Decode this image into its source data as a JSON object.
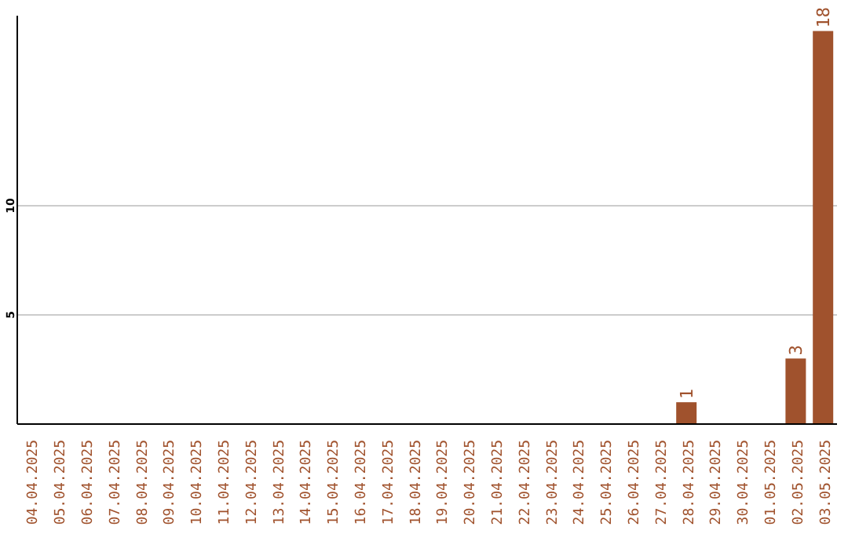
{
  "chart_data": {
    "type": "bar",
    "categories": [
      "04.04.2025",
      "05.04.2025",
      "06.04.2025",
      "07.04.2025",
      "08.04.2025",
      "09.04.2025",
      "10.04.2025",
      "11.04.2025",
      "12.04.2025",
      "13.04.2025",
      "14.04.2025",
      "15.04.2025",
      "16.04.2025",
      "17.04.2025",
      "18.04.2025",
      "19.04.2025",
      "20.04.2025",
      "21.04.2025",
      "22.04.2025",
      "23.04.2025",
      "24.04.2025",
      "25.04.2025",
      "26.04.2025",
      "27.04.2025",
      "28.04.2025",
      "29.04.2025",
      "30.04.2025",
      "01.05.2025",
      "02.05.2025",
      "03.05.2025"
    ],
    "values": [
      0,
      0,
      0,
      0,
      0,
      0,
      0,
      0,
      0,
      0,
      0,
      0,
      0,
      0,
      0,
      0,
      0,
      0,
      0,
      0,
      0,
      0,
      0,
      0,
      1,
      0,
      0,
      0,
      3,
      18
    ],
    "value_labels": [
      null,
      null,
      null,
      null,
      null,
      null,
      null,
      null,
      null,
      null,
      null,
      null,
      null,
      null,
      null,
      null,
      null,
      null,
      null,
      null,
      null,
      null,
      null,
      null,
      "1",
      null,
      null,
      null,
      "3",
      "18"
    ],
    "color": "#a0522d",
    "ylim": [
      0,
      18.7
    ],
    "yticks": [
      5,
      10
    ],
    "grid": "y"
  }
}
